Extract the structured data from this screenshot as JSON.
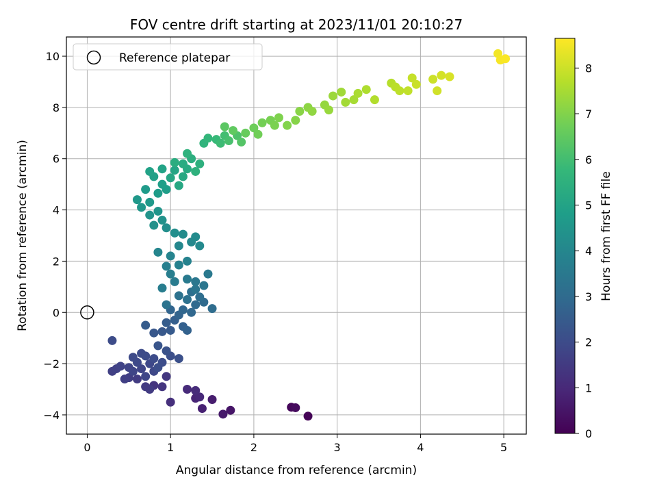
{
  "chart_data": {
    "type": "scatter",
    "title": "FOV centre drift starting at 2023/11/01 20:10:27",
    "xlabel": "Angular distance from reference (arcmin)",
    "ylabel": "Rotation from reference (arcmin)",
    "colorbar_label": "Hours from first FF file",
    "xlim": [
      -0.25,
      5.27
    ],
    "ylim": [
      -4.75,
      10.75
    ],
    "x_ticks": [
      0,
      1,
      2,
      3,
      4,
      5
    ],
    "y_ticks": [
      -4,
      -2,
      0,
      2,
      4,
      6,
      8,
      10
    ],
    "colorbar_range": [
      0,
      8.65
    ],
    "colorbar_ticks": [
      0,
      1,
      2,
      3,
      4,
      5,
      6,
      7,
      8
    ],
    "colormap": [
      "#440154",
      "#482878",
      "#3e4989",
      "#31688e",
      "#26828e",
      "#1f9e89",
      "#35b779",
      "#6ece58",
      "#b5de2b",
      "#fde725"
    ],
    "grid": true,
    "legend": {
      "placement": "top-left",
      "entries": [
        {
          "label": "Reference platepar",
          "marker": "open-circle",
          "color": "#000000"
        }
      ]
    },
    "reference_point": {
      "x": 0,
      "y": 0
    },
    "series": [
      {
        "points": [
          [
            2.65,
            -4.05,
            0.05
          ],
          [
            2.45,
            -3.7,
            0.15
          ],
          [
            2.5,
            -3.72,
            0.25
          ],
          [
            1.72,
            -3.82,
            0.5
          ],
          [
            1.63,
            -3.97,
            0.6
          ],
          [
            1.5,
            -3.4,
            0.7
          ],
          [
            1.38,
            -3.75,
            0.8
          ],
          [
            1.3,
            -3.35,
            0.9
          ],
          [
            1.35,
            -3.3,
            1.0
          ],
          [
            1.2,
            -3.0,
            1.05
          ],
          [
            1.3,
            -3.05,
            1.1
          ],
          [
            1.0,
            -3.5,
            1.2
          ],
          [
            0.8,
            -2.85,
            1.3
          ],
          [
            0.9,
            -2.9,
            1.35
          ],
          [
            0.95,
            -2.5,
            1.4
          ],
          [
            0.75,
            -3.0,
            1.5
          ],
          [
            0.7,
            -2.9,
            1.5
          ],
          [
            0.6,
            -2.6,
            1.55
          ],
          [
            0.5,
            -2.55,
            1.6
          ],
          [
            0.45,
            -2.6,
            1.62
          ],
          [
            0.3,
            -2.3,
            1.65
          ],
          [
            0.35,
            -2.2,
            1.7
          ],
          [
            0.4,
            -2.1,
            1.75
          ],
          [
            0.5,
            -2.15,
            1.78
          ],
          [
            0.55,
            -2.3,
            1.8
          ],
          [
            0.65,
            -2.2,
            1.82
          ],
          [
            0.7,
            -2.5,
            1.85
          ],
          [
            0.8,
            -2.3,
            1.88
          ],
          [
            0.75,
            -2.0,
            1.9
          ],
          [
            0.6,
            -1.95,
            1.92
          ],
          [
            0.55,
            -1.75,
            1.95
          ],
          [
            0.65,
            -1.6,
            1.98
          ],
          [
            0.7,
            -1.7,
            2.0
          ],
          [
            0.8,
            -1.8,
            2.02
          ],
          [
            0.9,
            -1.95,
            2.05
          ],
          [
            0.85,
            -2.15,
            2.08
          ],
          [
            0.3,
            -1.1,
            2.0
          ],
          [
            1.0,
            -1.7,
            2.1
          ],
          [
            1.1,
            -1.8,
            2.15
          ],
          [
            0.95,
            -1.5,
            2.2
          ],
          [
            0.85,
            -1.3,
            2.3
          ],
          [
            0.8,
            -0.8,
            2.35
          ],
          [
            0.9,
            -0.75,
            2.4
          ],
          [
            1.0,
            -0.7,
            2.45
          ],
          [
            0.7,
            -0.5,
            2.5
          ],
          [
            0.95,
            -0.4,
            2.55
          ],
          [
            1.05,
            -0.3,
            2.6
          ],
          [
            1.15,
            -0.55,
            2.65
          ],
          [
            1.2,
            -0.7,
            2.7
          ],
          [
            1.1,
            -0.1,
            2.75
          ],
          [
            1.0,
            0.1,
            2.8
          ],
          [
            1.15,
            0.1,
            2.85
          ],
          [
            1.25,
            0.0,
            2.9
          ],
          [
            1.3,
            0.3,
            2.95
          ],
          [
            1.4,
            0.4,
            3.0
          ],
          [
            1.5,
            0.15,
            3.05
          ],
          [
            1.35,
            0.6,
            3.1
          ],
          [
            1.25,
            0.8,
            3.15
          ],
          [
            1.2,
            0.5,
            3.2
          ],
          [
            1.1,
            0.65,
            3.25
          ],
          [
            0.95,
            0.3,
            3.3
          ],
          [
            1.3,
            0.9,
            3.35
          ],
          [
            1.4,
            1.05,
            3.4
          ],
          [
            1.3,
            1.2,
            3.45
          ],
          [
            1.45,
            1.5,
            3.5
          ],
          [
            1.2,
            1.3,
            3.55
          ],
          [
            1.05,
            1.2,
            3.6
          ],
          [
            0.9,
            0.95,
            3.65
          ],
          [
            1.0,
            1.5,
            3.7
          ],
          [
            0.95,
            1.8,
            3.75
          ],
          [
            1.1,
            1.85,
            3.8
          ],
          [
            1.2,
            2.0,
            3.85
          ],
          [
            1.0,
            2.2,
            3.9
          ],
          [
            0.85,
            2.35,
            3.95
          ],
          [
            1.1,
            2.6,
            4.0
          ],
          [
            1.25,
            2.75,
            4.05
          ],
          [
            1.35,
            2.6,
            4.1
          ],
          [
            1.3,
            2.95,
            4.15
          ],
          [
            1.15,
            3.05,
            4.2
          ],
          [
            1.05,
            3.1,
            4.25
          ],
          [
            0.95,
            3.3,
            4.3
          ],
          [
            0.8,
            3.4,
            4.35
          ],
          [
            0.9,
            3.6,
            4.4
          ],
          [
            0.75,
            3.8,
            4.45
          ],
          [
            0.85,
            3.95,
            4.5
          ],
          [
            0.65,
            4.1,
            4.55
          ],
          [
            0.6,
            4.4,
            4.6
          ],
          [
            0.75,
            4.3,
            4.65
          ],
          [
            0.7,
            4.8,
            4.7
          ],
          [
            0.85,
            4.65,
            4.75
          ],
          [
            0.95,
            4.8,
            4.8
          ],
          [
            0.9,
            5.0,
            4.85
          ],
          [
            0.8,
            5.3,
            4.9
          ],
          [
            0.75,
            5.5,
            4.95
          ],
          [
            0.9,
            5.6,
            5.0
          ],
          [
            1.05,
            5.55,
            5.05
          ],
          [
            1.0,
            5.25,
            5.1
          ],
          [
            1.1,
            4.95,
            5.15
          ],
          [
            1.15,
            5.3,
            5.2
          ],
          [
            1.2,
            5.6,
            5.25
          ],
          [
            1.15,
            5.8,
            5.3
          ],
          [
            1.05,
            5.85,
            5.35
          ],
          [
            1.25,
            6.0,
            5.4
          ],
          [
            1.35,
            5.8,
            5.45
          ],
          [
            1.3,
            5.5,
            5.5
          ],
          [
            1.2,
            6.2,
            5.55
          ],
          [
            1.4,
            6.6,
            5.6
          ],
          [
            1.45,
            6.8,
            5.7
          ],
          [
            1.55,
            6.75,
            5.8
          ],
          [
            1.6,
            6.6,
            5.9
          ],
          [
            1.65,
            6.9,
            6.0
          ],
          [
            1.7,
            6.7,
            6.1
          ],
          [
            1.8,
            6.9,
            6.2
          ],
          [
            1.85,
            6.65,
            6.3
          ],
          [
            1.65,
            7.25,
            6.4
          ],
          [
            1.75,
            7.1,
            6.5
          ],
          [
            1.9,
            7.0,
            6.6
          ],
          [
            2.0,
            7.2,
            6.7
          ],
          [
            2.05,
            6.95,
            6.75
          ],
          [
            2.1,
            7.4,
            6.8
          ],
          [
            2.2,
            7.5,
            6.85
          ],
          [
            2.25,
            7.3,
            6.9
          ],
          [
            2.3,
            7.6,
            6.95
          ],
          [
            2.4,
            7.3,
            7.0
          ],
          [
            2.5,
            7.5,
            7.05
          ],
          [
            2.55,
            7.85,
            7.1
          ],
          [
            2.65,
            8.0,
            7.15
          ],
          [
            2.7,
            7.85,
            7.2
          ],
          [
            2.85,
            8.1,
            7.25
          ],
          [
            2.9,
            7.9,
            7.3
          ],
          [
            2.95,
            8.45,
            7.35
          ],
          [
            3.05,
            8.6,
            7.4
          ],
          [
            3.1,
            8.2,
            7.45
          ],
          [
            3.2,
            8.3,
            7.5
          ],
          [
            3.25,
            8.55,
            7.55
          ],
          [
            3.35,
            8.7,
            7.6
          ],
          [
            3.45,
            8.3,
            7.65
          ],
          [
            3.65,
            8.95,
            7.7
          ],
          [
            3.7,
            8.8,
            7.75
          ],
          [
            3.75,
            8.65,
            7.8
          ],
          [
            3.85,
            8.65,
            7.85
          ],
          [
            3.9,
            9.15,
            7.9
          ],
          [
            3.95,
            8.9,
            7.95
          ],
          [
            4.15,
            9.1,
            8.0
          ],
          [
            4.2,
            8.65,
            8.05
          ],
          [
            4.25,
            9.25,
            8.1
          ],
          [
            4.35,
            9.2,
            8.15
          ],
          [
            4.93,
            10.1,
            8.5
          ],
          [
            4.96,
            9.85,
            8.55
          ],
          [
            5.02,
            9.9,
            8.6
          ]
        ]
      }
    ]
  }
}
